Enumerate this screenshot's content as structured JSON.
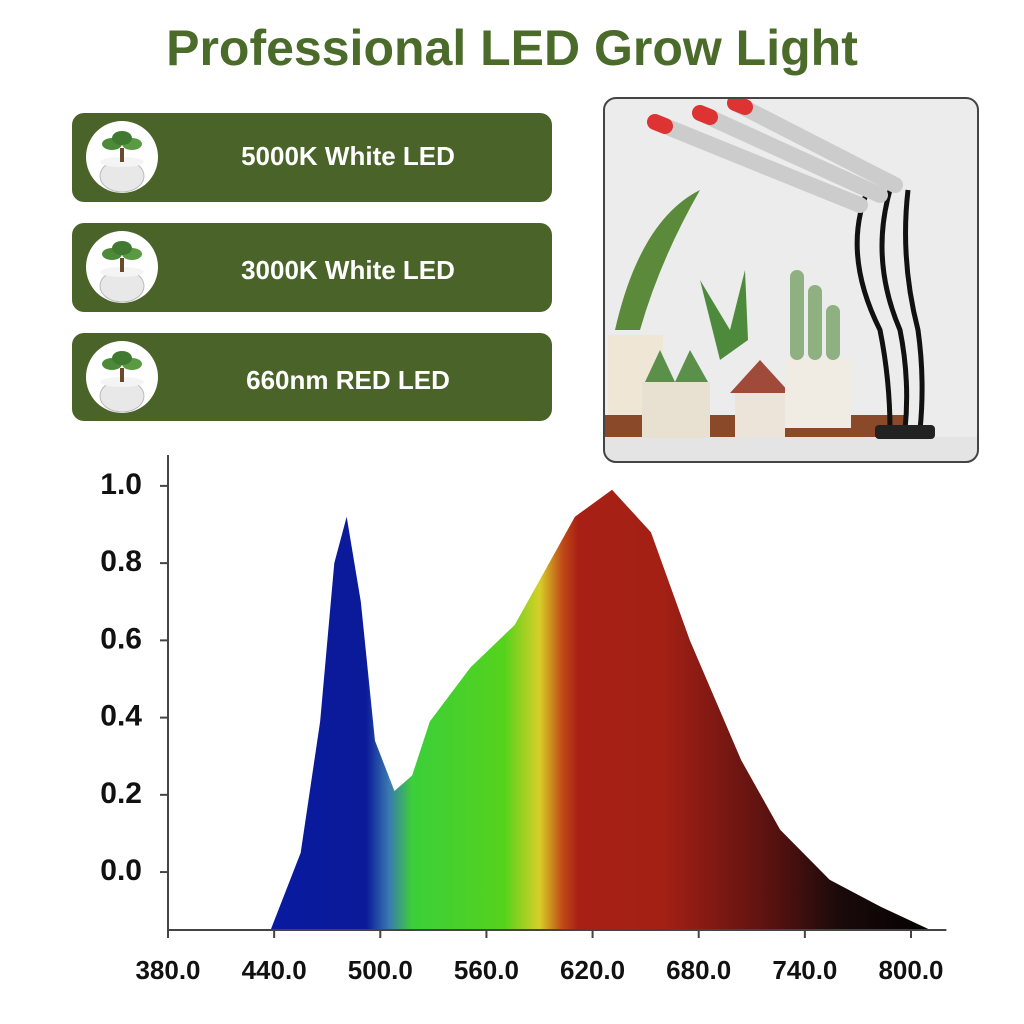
{
  "features": [
    "5000K White LED",
    "3000K White LED",
    "660nm RED LED"
  ],
  "chart_data": {
    "type": "area",
    "title": "Professional LED Grow Light",
    "x": [
      438,
      455,
      466,
      474,
      481,
      489,
      497,
      508,
      518,
      528,
      551,
      576,
      593,
      610,
      631,
      653,
      675,
      704,
      726,
      754,
      783,
      811
    ],
    "values": [
      -0.15,
      0.05,
      0.39,
      0.8,
      0.92,
      0.7,
      0.34,
      0.21,
      0.25,
      0.39,
      0.53,
      0.64,
      0.78,
      0.92,
      0.99,
      0.88,
      0.6,
      0.29,
      0.11,
      -0.02,
      -0.09,
      -0.15
    ],
    "xlim": [
      380,
      820
    ],
    "ylim": [
      -0.15,
      1.08
    ],
    "xticks": [
      {
        "value": 380,
        "label": "380.0"
      },
      {
        "value": 440,
        "label": "440.0"
      },
      {
        "value": 500,
        "label": "500.0"
      },
      {
        "value": 560,
        "label": "560.0"
      },
      {
        "value": 620,
        "label": "620.0"
      },
      {
        "value": 680,
        "label": "680.0"
      },
      {
        "value": 740,
        "label": "740.0"
      },
      {
        "value": 800,
        "label": "800.0"
      }
    ],
    "yticks": [
      {
        "value": 0,
        "label": "0.0"
      },
      0.2,
      0.4,
      0.6,
      0.8,
      {
        "value": 1,
        "label": "1.0"
      }
    ]
  }
}
